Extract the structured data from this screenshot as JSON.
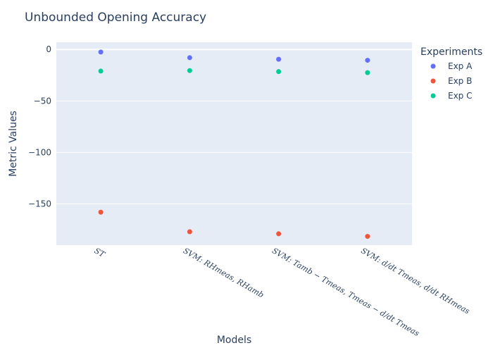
{
  "chart_data": {
    "type": "scatter",
    "title": "Unbounded Opening Accuracy",
    "xlabel": "Models",
    "ylabel": "Metric Values",
    "categories": [
      {
        "base": "ST",
        "lines": []
      },
      {
        "base": "SVM: RH",
        "lines": [
          {
            "text": "SVM: RHmeas, RHamb"
          }
        ]
      },
      {
        "base": "SVM: T",
        "lines": [
          {
            "text": "SVM: Tamb − Tmeas, Tmeas − d/dt Tmeas"
          }
        ]
      },
      {
        "base": "SVM: d/dt",
        "lines": [
          {
            "text": "SVM: d/dt Tmeas, d/dt RHmeas"
          }
        ]
      }
    ],
    "category_labels": [
      "ST",
      "SVM: RHmeas, RHamb",
      "SVM: Tamb − Tmeas, Tmeas − d/dt Tmeas",
      "SVM: d/dt Tmeas, d/dt RHmeas"
    ],
    "ylim": [
      -190,
      7
    ],
    "yticks": [
      0,
      -50,
      -100,
      -150
    ],
    "ytick_labels": [
      "0",
      "−50",
      "−100",
      "−150"
    ],
    "legend_title": "Experiments",
    "legend_position": "top-right",
    "series": [
      {
        "name": "Exp A",
        "color": "#636efa",
        "values": [
          -2.5,
          -8,
          -9.5,
          -10.5
        ]
      },
      {
        "name": "Exp B",
        "color": "#EF553B",
        "values": [
          -158,
          -177,
          -179,
          -181.5
        ]
      },
      {
        "name": "Exp C",
        "color": "#00cc96",
        "values": [
          -21,
          -20.5,
          -21.5,
          -22.5
        ]
      }
    ]
  }
}
